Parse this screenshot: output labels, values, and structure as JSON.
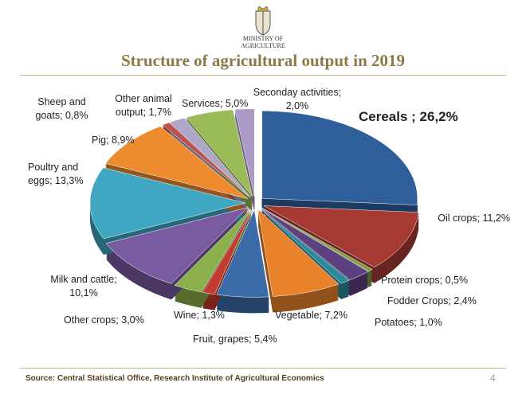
{
  "header": {
    "organization": "Ministry of Agriculture"
  },
  "chart_data": {
    "type": "pie",
    "title": "Structure of agricultural output in 2019",
    "values": [
      26.2,
      11.2,
      0.5,
      2.4,
      1.0,
      7.2,
      5.4,
      1.3,
      3.0,
      10.1,
      13.3,
      8.9,
      0.8,
      1.7,
      5.0,
      2.0
    ],
    "value_labels": [
      "Cereals ; 26,2%",
      "Oil crops; 11,2%",
      "Protein crops; 0,5%",
      "Fodder Crops; 2,4%",
      "Potatoes; 1,0%",
      "Vegetable; 7,2%",
      "Fruit, grapes; 5,4%",
      "Wine; 1,3%",
      "Other crops; 3,0%",
      "Milk and cattle; 10,1%",
      "Poultry and eggs; 13,3%",
      "Pig; 8,9%",
      "Sheep and goats; 0,8%",
      "Other animal output; 1,7%",
      "Services; 5,0%",
      "Seconday activities; 2,0%"
    ],
    "colors": [
      "#2f5f9b",
      "#a63a33",
      "#7e9c3d",
      "#5d4080",
      "#2b8a9b",
      "#e8822b",
      "#3b6ba9",
      "#c33b30",
      "#8bb04b",
      "#7a5ba1",
      "#3fa7c1",
      "#ee8b2f",
      "#c0504d",
      "#b0a6c8",
      "#9bbb59",
      "#a99bc6"
    ]
  },
  "footer": {
    "source": "Source: Central Statistical Office, Research Institute of Agricultural Economics",
    "page_number": 4
  }
}
